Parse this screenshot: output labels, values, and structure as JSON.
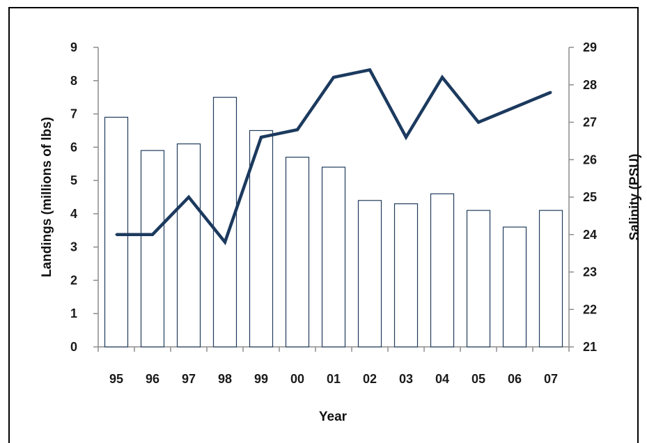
{
  "chart_data": {
    "type": "bar",
    "categories": [
      "95",
      "96",
      "97",
      "98",
      "99",
      "00",
      "01",
      "02",
      "03",
      "04",
      "05",
      "06",
      "07"
    ],
    "series": [
      {
        "values": [
          6.9,
          5.9,
          6.1,
          7.5,
          6.5,
          5.7,
          5.4,
          4.4,
          4.3,
          4.6,
          4.1,
          3.6,
          4.1
        ],
        "type": "bar",
        "axis": "left"
      },
      {
        "values": [
          24.0,
          24.0,
          25.0,
          23.8,
          26.6,
          26.8,
          28.2,
          28.4,
          26.6,
          28.2,
          27.0,
          27.4,
          27.8
        ],
        "type": "line",
        "axis": "right"
      }
    ],
    "xlabel": "Year",
    "ylabel": "Landings (millions of lbs)",
    "y2label": "Salinity (PSU)",
    "ylim": [
      0,
      9
    ],
    "y2lim": [
      21,
      29
    ],
    "yticks": [
      "0",
      "1",
      "2",
      "3",
      "4",
      "5",
      "6",
      "7",
      "8",
      "9"
    ],
    "y2ticks": [
      "21",
      "22",
      "23",
      "24",
      "25",
      "26",
      "27",
      "28",
      "29"
    ],
    "grid": false,
    "legend": "none",
    "colors": {
      "bar_fill": "#ffffff",
      "bar_stroke": "#1f3b5c",
      "line": "#1c3a5e",
      "axis": "#8c8c8c",
      "text": "#1a1a1a"
    }
  }
}
